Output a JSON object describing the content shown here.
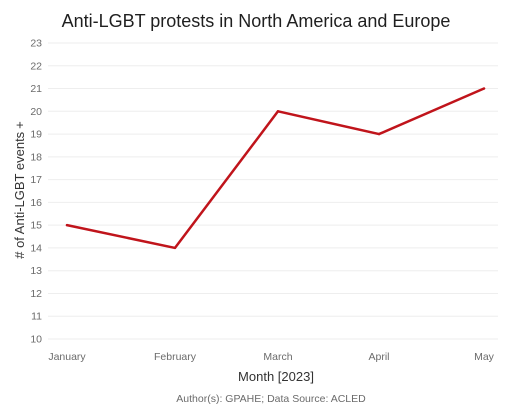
{
  "chart_data": {
    "type": "line",
    "title": "Anti-LGBT protests in North America and Europe",
    "xlabel": "Month [2023]",
    "ylabel": "# of Anti-LGBT events",
    "ylabel_marker": "+",
    "categories": [
      "January",
      "February",
      "March",
      "April",
      "May"
    ],
    "series": [
      {
        "values": [
          15,
          14,
          20,
          19,
          21
        ],
        "color": "#c0141b"
      }
    ],
    "y_ticks": [
      "10",
      "11",
      "12",
      "13",
      "14",
      "15",
      "16",
      "17",
      "18",
      "19",
      "20",
      "21",
      "22",
      "23"
    ],
    "ylim": [
      10,
      23
    ],
    "grid": true,
    "caption": "Author(s): GPAHE; Data Source: ACLED"
  }
}
